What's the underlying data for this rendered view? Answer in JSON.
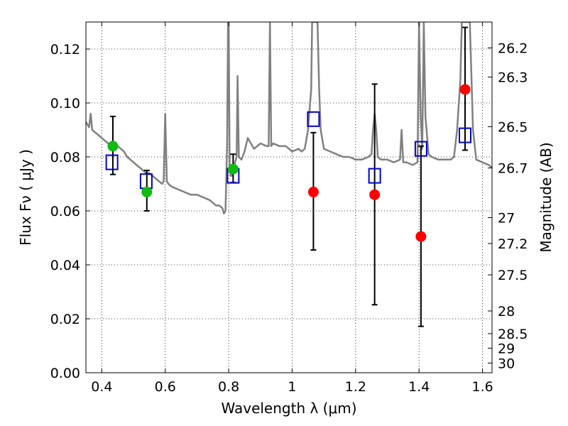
{
  "chart_data": {
    "type": "scatter",
    "xlabel": "Wavelength  λ (μm)",
    "ylabel": "Flux  Fν  ( μJy )",
    "ylabel_right": "Magnitude (AB)",
    "xlim": [
      0.35,
      1.63
    ],
    "ylim": [
      0.0,
      0.13
    ],
    "grid": true,
    "x_ticks": [
      0.4,
      0.6,
      0.8,
      1.0,
      1.2,
      1.4,
      1.6
    ],
    "x_tick_labels": [
      "0.4",
      "0.6",
      "0.8",
      "1",
      "1.2",
      "1.4",
      "1.6"
    ],
    "y_ticks": [
      0.0,
      0.02,
      0.04,
      0.06,
      0.08,
      0.1,
      0.12
    ],
    "y_tick_labels": [
      "0.00",
      "0.02",
      "0.04",
      "0.06",
      "0.08",
      "0.10",
      "0.12"
    ],
    "right_ticks": [
      {
        "label": "26.2",
        "flux": 0.1204
      },
      {
        "label": "26.3",
        "flux": 0.1096
      },
      {
        "label": "26.5",
        "flux": 0.0912
      },
      {
        "label": "26.7",
        "flux": 0.0759
      },
      {
        "label": "27",
        "flux": 0.0575
      },
      {
        "label": "27.2",
        "flux": 0.0479
      },
      {
        "label": "27.5",
        "flux": 0.0363
      },
      {
        "label": "28",
        "flux": 0.0229
      },
      {
        "label": "28.5",
        "flux": 0.0145
      },
      {
        "label": "29",
        "flux": 0.0091
      },
      {
        "label": "30",
        "flux": 0.0036
      }
    ],
    "series": [
      {
        "kind": "spectrum",
        "color": "#808080",
        "points": [
          [
            0.35,
            0.093
          ],
          [
            0.36,
            0.091
          ],
          [
            0.365,
            0.096
          ],
          [
            0.37,
            0.09
          ],
          [
            0.38,
            0.089
          ],
          [
            0.39,
            0.088
          ],
          [
            0.4,
            0.087
          ],
          [
            0.41,
            0.086
          ],
          [
            0.42,
            0.085
          ],
          [
            0.43,
            0.084
          ],
          [
            0.44,
            0.083
          ],
          [
            0.45,
            0.084
          ],
          [
            0.46,
            0.083
          ],
          [
            0.47,
            0.082
          ],
          [
            0.48,
            0.08
          ],
          [
            0.49,
            0.079
          ],
          [
            0.5,
            0.078
          ],
          [
            0.51,
            0.077
          ],
          [
            0.52,
            0.076
          ],
          [
            0.53,
            0.075
          ],
          [
            0.54,
            0.074
          ],
          [
            0.55,
            0.074
          ],
          [
            0.56,
            0.073
          ],
          [
            0.57,
            0.072
          ],
          [
            0.58,
            0.071
          ],
          [
            0.59,
            0.07
          ],
          [
            0.595,
            0.071
          ],
          [
            0.6,
            0.096
          ],
          [
            0.605,
            0.071
          ],
          [
            0.61,
            0.07
          ],
          [
            0.62,
            0.069
          ],
          [
            0.64,
            0.068
          ],
          [
            0.66,
            0.067
          ],
          [
            0.68,
            0.066
          ],
          [
            0.7,
            0.066
          ],
          [
            0.72,
            0.065
          ],
          [
            0.74,
            0.064
          ],
          [
            0.75,
            0.063
          ],
          [
            0.76,
            0.062
          ],
          [
            0.77,
            0.062
          ],
          [
            0.78,
            0.061
          ],
          [
            0.785,
            0.059
          ],
          [
            0.79,
            0.06
          ],
          [
            0.795,
            0.085
          ],
          [
            0.798,
            0.13
          ],
          [
            0.8,
            0.13
          ],
          [
            0.803,
            0.078
          ],
          [
            0.806,
            0.073
          ],
          [
            0.81,
            0.073
          ],
          [
            0.815,
            0.075
          ],
          [
            0.82,
            0.078
          ],
          [
            0.825,
            0.08
          ],
          [
            0.828,
            0.11
          ],
          [
            0.832,
            0.08
          ],
          [
            0.84,
            0.079
          ],
          [
            0.85,
            0.082
          ],
          [
            0.86,
            0.087
          ],
          [
            0.87,
            0.085
          ],
          [
            0.88,
            0.083
          ],
          [
            0.9,
            0.085
          ],
          [
            0.92,
            0.084
          ],
          [
            0.926,
            0.084
          ],
          [
            0.93,
            0.13
          ],
          [
            0.934,
            0.084
          ],
          [
            0.94,
            0.085
          ],
          [
            0.96,
            0.084
          ],
          [
            0.98,
            0.084
          ],
          [
            0.99,
            0.083
          ],
          [
            1.0,
            0.082
          ],
          [
            1.02,
            0.083
          ],
          [
            1.03,
            0.082
          ],
          [
            1.04,
            0.083
          ],
          [
            1.05,
            0.09
          ],
          [
            1.06,
            0.105
          ],
          [
            1.063,
            0.13
          ],
          [
            1.08,
            0.13
          ],
          [
            1.085,
            0.105
          ],
          [
            1.09,
            0.09
          ],
          [
            1.1,
            0.083
          ],
          [
            1.12,
            0.082
          ],
          [
            1.14,
            0.081
          ],
          [
            1.16,
            0.08
          ],
          [
            1.18,
            0.08
          ],
          [
            1.2,
            0.079
          ],
          [
            1.22,
            0.079
          ],
          [
            1.24,
            0.08
          ],
          [
            1.25,
            0.081
          ],
          [
            1.255,
            0.09
          ],
          [
            1.26,
            0.096
          ],
          [
            1.265,
            0.09
          ],
          [
            1.27,
            0.08
          ],
          [
            1.28,
            0.079
          ],
          [
            1.3,
            0.079
          ],
          [
            1.32,
            0.078
          ],
          [
            1.34,
            0.079
          ],
          [
            1.345,
            0.09
          ],
          [
            1.35,
            0.078
          ],
          [
            1.36,
            0.078
          ],
          [
            1.38,
            0.077
          ],
          [
            1.395,
            0.078
          ],
          [
            1.4,
            0.13
          ],
          [
            1.405,
            0.095
          ],
          [
            1.41,
            0.083
          ],
          [
            1.415,
            0.13
          ],
          [
            1.42,
            0.095
          ],
          [
            1.43,
            0.081
          ],
          [
            1.44,
            0.08
          ],
          [
            1.46,
            0.079
          ],
          [
            1.48,
            0.079
          ],
          [
            1.5,
            0.079
          ],
          [
            1.51,
            0.08
          ],
          [
            1.52,
            0.09
          ],
          [
            1.53,
            0.108
          ],
          [
            1.535,
            0.13
          ],
          [
            1.56,
            0.13
          ],
          [
            1.565,
            0.11
          ],
          [
            1.57,
            0.09
          ],
          [
            1.58,
            0.079
          ],
          [
            1.6,
            0.078
          ],
          [
            1.62,
            0.077
          ],
          [
            1.63,
            0.076
          ]
        ]
      },
      {
        "kind": "model_flux",
        "marker": "open-square",
        "color": "#0000cc",
        "points": [
          [
            0.432,
            0.078
          ],
          [
            0.54,
            0.071
          ],
          [
            0.814,
            0.073
          ],
          [
            1.067,
            0.094
          ],
          [
            1.26,
            0.073
          ],
          [
            1.406,
            0.083
          ],
          [
            1.545,
            0.088
          ]
        ]
      },
      {
        "kind": "detection",
        "marker": "filled-circle",
        "color": "#11bb11",
        "points": [
          [
            0.435,
            0.084
          ],
          [
            0.542,
            0.067
          ],
          [
            0.814,
            0.0755
          ]
        ]
      },
      {
        "kind": "measurement",
        "marker": "filled-circle",
        "color": "#ff0000",
        "points": [
          [
            1.067,
            0.067
          ],
          [
            1.26,
            0.066
          ],
          [
            1.406,
            0.0505
          ],
          [
            1.545,
            0.105
          ]
        ]
      },
      {
        "kind": "error_bars",
        "color": "#000000",
        "bars": [
          {
            "x": 0.435,
            "low": 0.0735,
            "high": 0.095
          },
          {
            "x": 0.542,
            "low": 0.06,
            "high": 0.075
          },
          {
            "x": 0.814,
            "low": 0.0705,
            "high": 0.081
          },
          {
            "x": 1.067,
            "low": 0.0455,
            "high": 0.089
          },
          {
            "x": 1.26,
            "low": 0.0252,
            "high": 0.107
          },
          {
            "x": 1.406,
            "low": 0.0172,
            "high": 0.084
          },
          {
            "x": 1.545,
            "low": 0.0825,
            "high": 0.128
          }
        ]
      }
    ]
  }
}
